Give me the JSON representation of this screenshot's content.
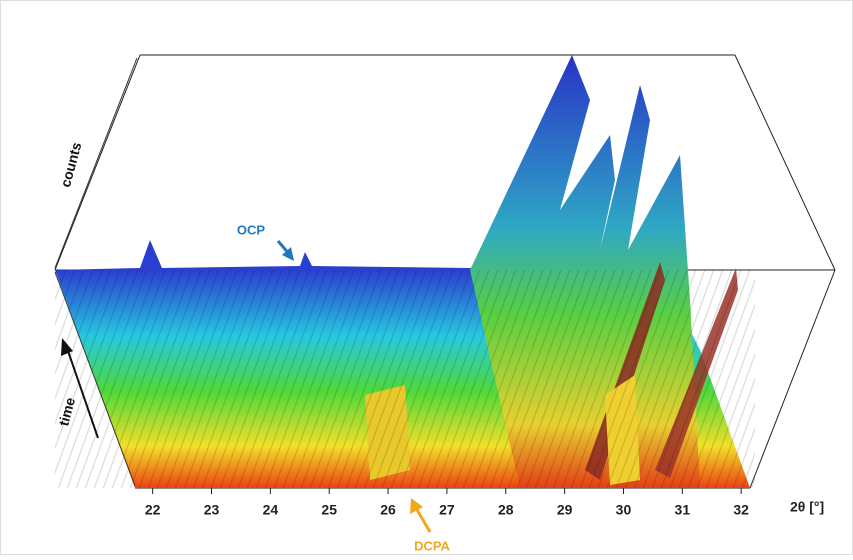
{
  "chart_data": {
    "type": "surface",
    "x_label": "2θ [°]",
    "z_label": "counts",
    "y_label": "time",
    "xlim": [
      21.7,
      32.15
    ],
    "xticks": [
      22,
      23,
      24,
      25,
      26,
      27,
      28,
      29,
      30,
      31,
      32
    ],
    "annotations": [
      {
        "text": "OCP",
        "color": "#1f78c1"
      },
      {
        "text": "DCPA",
        "color": "#f0a81c"
      }
    ]
  }
}
